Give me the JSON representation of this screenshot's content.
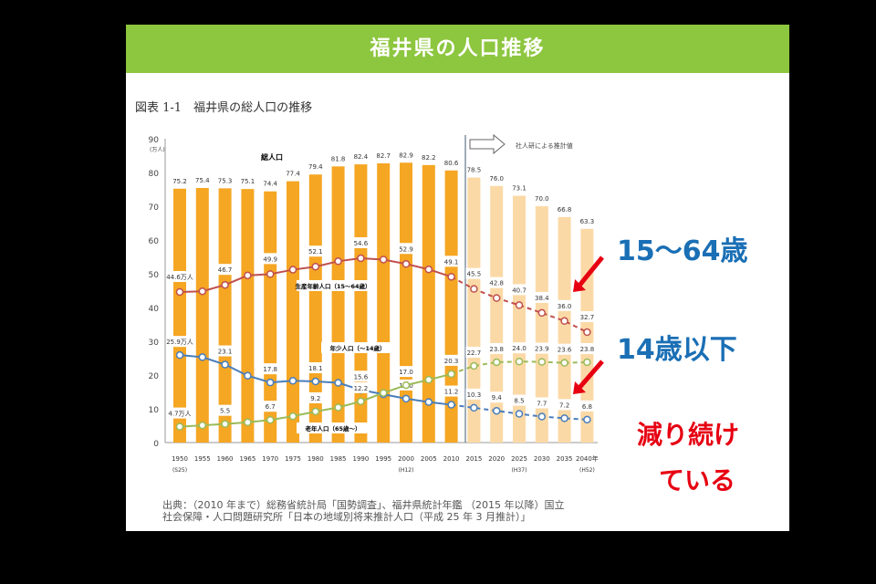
{
  "header": {
    "title": "福井県の人口推移"
  },
  "figure": {
    "title": "図表 1-1　福井県の総人口の推移",
    "source_line1": "出典：（2010 年まで）総務省統計局「国勢調査」、福井県統計年鑑 （2015 年以降）国立",
    "source_line2": "社会保障・人口問題研究所「日本の地域別将来推計人口（平成 25 年 3 月推計）」"
  },
  "callouts": {
    "working": "15～64歳",
    "child": "14歳以下",
    "decline1": "減り続け",
    "decline2": "ている"
  },
  "colors": {
    "header": "#8dc63f",
    "bar_actual": "#f5a623",
    "bar_projection": "#fbd9a6",
    "working": "#c0504d",
    "child": "#4a7ebb",
    "elderly": "#9bbb59",
    "callout_blue": "#1a6fb5",
    "callout_red": "#e60012"
  },
  "chart_data": {
    "type": "bar",
    "title": "福井県の総人口の推移",
    "ylabel": "(万人)",
    "ylim": [
      0,
      90
    ],
    "yticks": [
      0,
      10,
      20,
      30,
      40,
      50,
      60,
      70,
      80,
      90
    ],
    "categories": [
      "1950",
      "1955",
      "1960",
      "1965",
      "1970",
      "1975",
      "1980",
      "1985",
      "1990",
      "1995",
      "2000",
      "2005",
      "2010",
      "2015",
      "2020",
      "2025",
      "2030",
      "2035",
      "2040年"
    ],
    "sublabels": {
      "1950": "(S25)",
      "2000": "(H12)",
      "2025": "(H37)",
      "2040年": "(H52)"
    },
    "projection_start_index": 13,
    "projection_label": "社人研による推計値",
    "series": [
      {
        "name": "総人口",
        "type": "bar",
        "values": [
          75.2,
          75.4,
          75.3,
          75.1,
          74.4,
          77.4,
          79.4,
          81.8,
          82.4,
          82.7,
          82.9,
          82.2,
          80.6,
          78.5,
          76.0,
          73.1,
          70.0,
          66.8,
          63.3
        ],
        "labels": [
          "75.2",
          "75.4",
          "75.3",
          "75.1",
          "74.4",
          "77.4",
          "79.4",
          "81.8",
          "82.4",
          "82.7",
          "82.9",
          "82.2",
          "80.6",
          "78.5",
          "76.0",
          "73.1",
          "70.0",
          "66.8",
          "63.3"
        ]
      },
      {
        "name": "生産年齢人口（15～64歳）",
        "type": "line",
        "values": [
          44.6,
          44.8,
          46.7,
          49.5,
          49.9,
          51.2,
          52.1,
          53.7,
          54.6,
          54.2,
          52.9,
          51.3,
          49.1,
          45.5,
          42.8,
          40.7,
          38.4,
          36.0,
          32.7
        ],
        "labels": [
          "44.6万人",
          null,
          "46.7",
          null,
          "49.9",
          null,
          "52.1",
          null,
          "54.6",
          null,
          "52.9",
          null,
          "49.1",
          "45.5",
          "42.8",
          "40.7",
          "38.4",
          "36.0",
          "32.7"
        ]
      },
      {
        "name": "年少人口（～14歳）",
        "type": "line",
        "values": [
          25.9,
          25.3,
          23.1,
          19.8,
          17.8,
          18.3,
          18.1,
          17.7,
          15.6,
          14.3,
          13.0,
          12.0,
          11.2,
          10.3,
          9.4,
          8.5,
          7.7,
          7.2,
          6.8
        ],
        "labels": [
          "25.9万人",
          null,
          "23.1",
          null,
          "17.8",
          null,
          "18.1",
          null,
          "15.6",
          null,
          "13.0",
          null,
          "11.2",
          "10.3",
          "9.4",
          "8.5",
          "7.7",
          "7.2",
          "6.8"
        ]
      },
      {
        "name": "老年人口（65歳～）",
        "type": "line",
        "values": [
          4.7,
          5.1,
          5.5,
          6.0,
          6.7,
          7.8,
          9.2,
          10.4,
          12.2,
          14.7,
          17.0,
          18.6,
          20.3,
          22.7,
          23.8,
          24.0,
          23.9,
          23.6,
          23.8
        ],
        "labels": [
          "4.7万人",
          null,
          "5.5",
          null,
          "6.7",
          null,
          "9.2",
          null,
          "12.2",
          null,
          "17.0",
          null,
          "20.3",
          "22.7",
          "23.8",
          "24.0",
          "23.9",
          "23.6",
          "23.8"
        ]
      }
    ]
  }
}
